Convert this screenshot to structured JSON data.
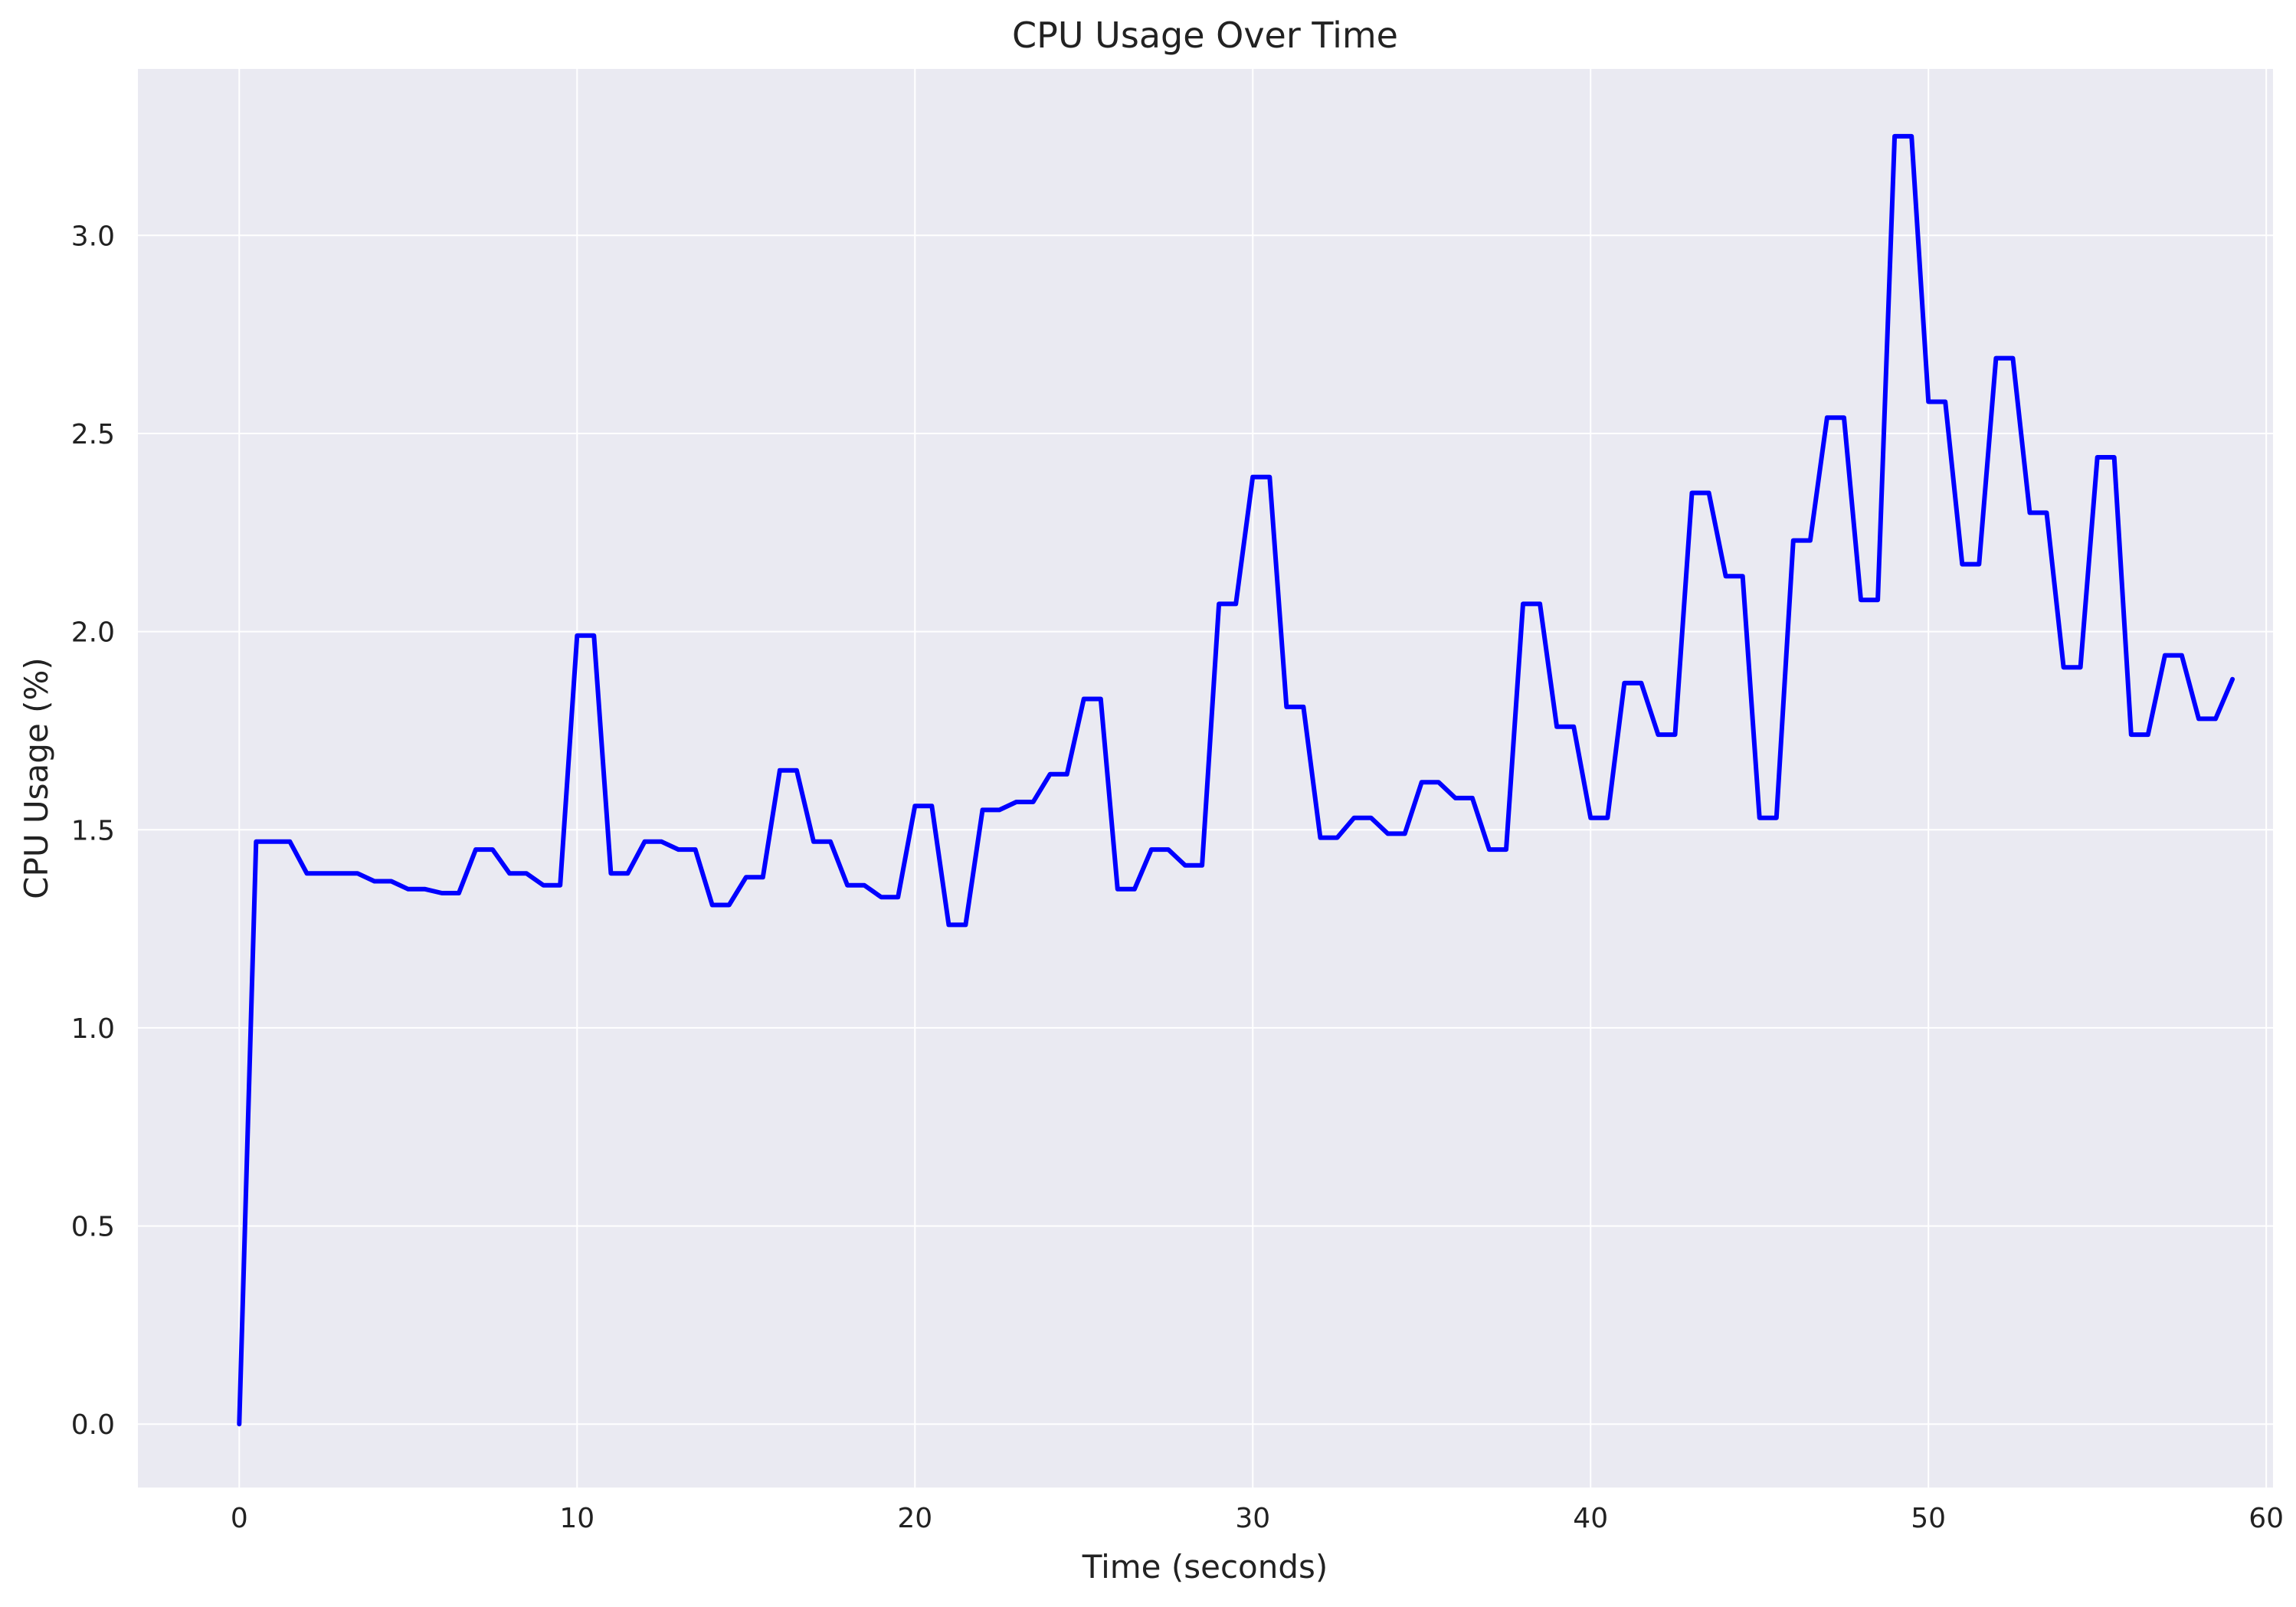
{
  "chart_data": {
    "type": "line",
    "title": "CPU Usage Over Time",
    "xlabel": "Time (seconds)",
    "ylabel": "CPU Usage (%)",
    "xlim": [
      -3,
      60.2
    ],
    "ylim": [
      -0.16,
      3.42
    ],
    "xticks": [
      0,
      10,
      20,
      30,
      40,
      50,
      60
    ],
    "xtick_labels": [
      "0",
      "10",
      "20",
      "30",
      "40",
      "50",
      "60"
    ],
    "yticks": [
      0.0,
      0.5,
      1.0,
      1.5,
      2.0,
      2.5,
      3.0
    ],
    "ytick_labels": [
      "0.0",
      "0.5",
      "1.0",
      "1.5",
      "2.0",
      "2.5",
      "3.0"
    ],
    "grid": true,
    "colors": {
      "background": "#eaeaf2",
      "grid": "#ffffff",
      "line": "#0000ff",
      "text": "#222222"
    },
    "series": [
      {
        "x": [
          0,
          0.5,
          1,
          1.5,
          2,
          2.5,
          3,
          3.5,
          4,
          4.5,
          5,
          5.5,
          6,
          6.5,
          7,
          7.5,
          8,
          8.5,
          9,
          9.5,
          10,
          10.5,
          11,
          11.5,
          12,
          12.5,
          13,
          13.5,
          14,
          14.5,
          15,
          15.5,
          16,
          16.5,
          17,
          17.5,
          18,
          18.5,
          19,
          19.5,
          20,
          20.5,
          21,
          21.5,
          22,
          22.5,
          23,
          23.5,
          24,
          24.5,
          25,
          25.5,
          26,
          26.5,
          27,
          27.5,
          28,
          28.5,
          29,
          29.5,
          30,
          30.5,
          31,
          31.5,
          32,
          32.5,
          33,
          33.5,
          34,
          34.5,
          35,
          35.5,
          36,
          36.5,
          37,
          37.5,
          38,
          38.5,
          39,
          39.5,
          40,
          40.5,
          41,
          41.5,
          42,
          42.5,
          43,
          43.5,
          44,
          44.5,
          45,
          45.5,
          46,
          46.5,
          47,
          47.5,
          48,
          48.5,
          49,
          49.5,
          50,
          50.5,
          51,
          51.5,
          52,
          52.5,
          53,
          53.5,
          54,
          54.5,
          55,
          55.5,
          56,
          56.5,
          57,
          57.5,
          58,
          58.5,
          59
        ],
        "y": [
          0.0,
          1.47,
          1.47,
          1.47,
          1.39,
          1.39,
          1.39,
          1.39,
          1.37,
          1.37,
          1.35,
          1.35,
          1.34,
          1.34,
          1.45,
          1.45,
          1.39,
          1.39,
          1.36,
          1.36,
          1.99,
          1.99,
          1.39,
          1.39,
          1.47,
          1.47,
          1.45,
          1.45,
          1.31,
          1.31,
          1.38,
          1.38,
          1.65,
          1.65,
          1.47,
          1.47,
          1.36,
          1.36,
          1.33,
          1.33,
          1.56,
          1.56,
          1.26,
          1.26,
          1.55,
          1.55,
          1.57,
          1.57,
          1.64,
          1.64,
          1.83,
          1.83,
          1.35,
          1.35,
          1.45,
          1.45,
          1.41,
          1.41,
          2.07,
          2.07,
          2.39,
          2.39,
          1.81,
          1.81,
          1.48,
          1.48,
          1.53,
          1.53,
          1.49,
          1.49,
          1.62,
          1.62,
          1.58,
          1.58,
          1.45,
          1.45,
          2.07,
          2.07,
          1.76,
          1.76,
          1.53,
          1.53,
          1.87,
          1.87,
          1.74,
          1.74,
          2.35,
          2.35,
          2.14,
          2.14,
          1.53,
          1.53,
          2.23,
          2.23,
          2.54,
          2.54,
          2.08,
          2.08,
          3.25,
          3.25,
          2.58,
          2.58,
          2.17,
          2.17,
          2.69,
          2.69,
          2.3,
          2.3,
          1.91,
          1.91,
          2.44,
          2.44,
          1.74,
          1.74,
          1.94,
          1.94,
          1.78,
          1.78,
          1.88
        ]
      }
    ]
  }
}
